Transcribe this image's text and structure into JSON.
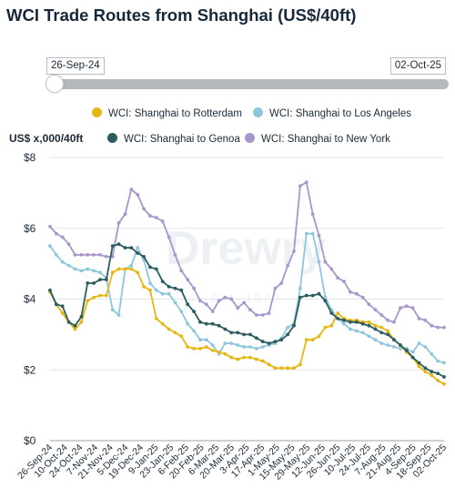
{
  "title": "WCI Trade Routes from Shanghai (US$/40ft)",
  "range": {
    "start": "26-Sep-24",
    "end": "02-Oct-25"
  },
  "colors": {
    "rotterdam": "#e6b613",
    "los_angeles": "#8fc6dd",
    "genoa": "#2b5c5e",
    "new_york": "#a896cc",
    "watermark": "#eef1f4"
  },
  "watermark": {
    "brand": "Drewry",
    "since": "Est. 1970"
  },
  "chart_data": {
    "type": "line",
    "ylabel": "US$ x,000/40ft",
    "ylim": [
      0,
      8
    ],
    "yticks": [
      "$0",
      "$2",
      "$4",
      "$6",
      "$8"
    ],
    "xticks": [
      "26-Sep-24",
      "10-Oct-24",
      "24-Oct-24",
      "7-Nov-24",
      "21-Nov-24",
      "5-Dec-24",
      "19-Dec-24",
      "9-Jan-25",
      "23-Jan-25",
      "6-Feb-25",
      "20-Feb-25",
      "6-Mar-25",
      "20-Mar-25",
      "3-Apr-25",
      "17-Apr-25",
      "1-May-25",
      "15-May-25",
      "29-May-25",
      "12-Jun-25",
      "26-Jun-25",
      "10-Jul-25",
      "24-Jul-25",
      "7-Aug-25",
      "21-Aug-25",
      "4-Sep-25",
      "18-Sep-25",
      "02-Oct-25"
    ],
    "grid": "horizontal",
    "legend": "top",
    "series": [
      {
        "name": "WCI: Shanghai to Rotterdam",
        "values": [
          4.2,
          3.85,
          3.6,
          3.35,
          3.15,
          3.35,
          3.95,
          4.05,
          4.1,
          4.1,
          4.75,
          4.85,
          4.85,
          4.85,
          4.75,
          4.35,
          4.25,
          3.45,
          3.3,
          3.15,
          3.05,
          2.95,
          2.65,
          2.6,
          2.6,
          2.65,
          2.55,
          2.5,
          2.45,
          2.35,
          2.3,
          2.35,
          2.35,
          2.3,
          2.25,
          2.15,
          2.05,
          2.05,
          2.05,
          2.05,
          2.15,
          2.85,
          2.85,
          2.95,
          3.2,
          3.25,
          3.6,
          3.45,
          3.4,
          3.4,
          3.35,
          3.35,
          3.25,
          3.2,
          3.1,
          2.85,
          2.7,
          2.5,
          2.35,
          2.1,
          1.95,
          1.85,
          1.7,
          1.6
        ]
      },
      {
        "name": "WCI: Shanghai to Los Angeles",
        "values": [
          5.5,
          5.25,
          5.05,
          4.95,
          4.85,
          4.8,
          4.85,
          4.8,
          4.75,
          4.6,
          3.7,
          3.55,
          4.85,
          4.95,
          5.45,
          5.1,
          4.45,
          4.25,
          4.15,
          4.15,
          3.9,
          3.65,
          3.3,
          3.1,
          2.85,
          2.85,
          2.7,
          2.45,
          2.75,
          2.75,
          2.7,
          2.65,
          2.65,
          2.6,
          2.65,
          2.7,
          2.75,
          2.9,
          3.2,
          3.3,
          4.3,
          5.85,
          5.85,
          5.05,
          4.05,
          3.7,
          3.45,
          3.3,
          3.15,
          3.1,
          3.05,
          2.95,
          2.85,
          2.75,
          2.7,
          2.65,
          2.6,
          2.6,
          2.5,
          2.75,
          2.65,
          2.45,
          2.25,
          2.2
        ]
      },
      {
        "name": "WCI: Shanghai to Genoa",
        "values": [
          4.25,
          3.85,
          3.8,
          3.35,
          3.25,
          3.5,
          4.45,
          4.45,
          4.55,
          4.55,
          5.5,
          5.55,
          5.45,
          5.45,
          5.3,
          5.2,
          4.9,
          4.85,
          4.5,
          4.35,
          4.3,
          4.25,
          3.85,
          3.65,
          3.35,
          3.3,
          3.3,
          3.25,
          3.15,
          3.05,
          3.05,
          3.0,
          3.0,
          2.9,
          2.8,
          2.75,
          2.8,
          2.85,
          3.0,
          3.25,
          4.05,
          4.1,
          4.1,
          4.15,
          3.95,
          3.6,
          3.45,
          3.4,
          3.35,
          3.35,
          3.3,
          3.25,
          3.15,
          3.05,
          3.0,
          2.85,
          2.7,
          2.55,
          2.35,
          2.2,
          2.05,
          1.95,
          1.9,
          1.8
        ]
      },
      {
        "name": "WCI: Shanghai to New York",
        "values": [
          6.05,
          5.85,
          5.75,
          5.55,
          5.25,
          5.25,
          5.25,
          5.25,
          5.25,
          5.2,
          5.2,
          6.15,
          6.4,
          7.1,
          6.95,
          6.55,
          6.35,
          6.3,
          6.2,
          5.75,
          5.25,
          4.8,
          4.55,
          4.3,
          3.95,
          3.85,
          3.65,
          3.95,
          4.05,
          4.0,
          3.75,
          3.9,
          3.7,
          3.55,
          3.55,
          3.6,
          4.3,
          4.45,
          4.95,
          5.35,
          7.2,
          7.3,
          6.4,
          5.8,
          5.05,
          4.85,
          4.6,
          4.5,
          4.2,
          4.15,
          4.05,
          3.85,
          3.7,
          3.55,
          3.4,
          3.35,
          3.75,
          3.8,
          3.75,
          3.45,
          3.4,
          3.25,
          3.2,
          3.2
        ]
      }
    ]
  }
}
